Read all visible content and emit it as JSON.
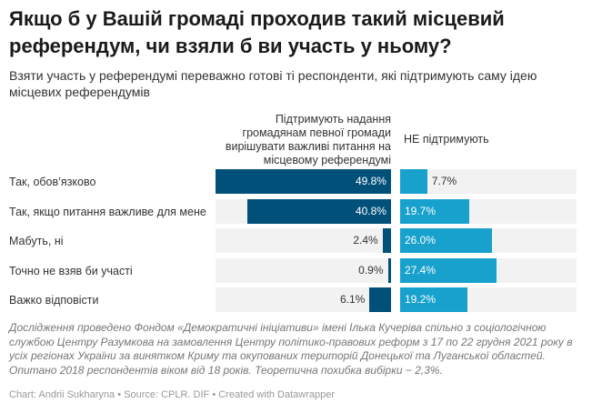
{
  "title": "Якщо б у Вашій громаді проходив такий місцевий референдум, чи взяли б ви участь у ньому?",
  "subtitle": "Взяти участь у референдумі переважно готові ті респонденти, які підтримують саму ідею місцевих референдумів",
  "chart_data": {
    "type": "bar",
    "orientation": "horizontal",
    "xlim": [
      0,
      50
    ],
    "categories": [
      "Так, обов’язково",
      "Так, якщо питання важливе для мене",
      "Мабуть, ні",
      "Точно не взяв би участі",
      "Важко відповісти"
    ],
    "series": [
      {
        "name": "Підтримують надання громадянам певної громади вирішувати важливі питання на місцевому референдумі",
        "values": [
          49.8,
          40.8,
          2.4,
          0.9,
          6.1
        ],
        "color": "#00507a",
        "labels": [
          "49.8%",
          "40.8%",
          "2.4%",
          "0.9%",
          "6.1%"
        ]
      },
      {
        "name": "НЕ підтримують",
        "values": [
          7.7,
          19.7,
          26.0,
          27.4,
          19.2
        ],
        "color": "#18a1cd",
        "labels": [
          "7.7%",
          "19.7%",
          "26.0%",
          "27.4%",
          "19.2%"
        ]
      }
    ]
  },
  "notes": "Дослідження проведено Фондом «Демократичні ініціативи» імені Ілька Кучеріва спільно з соціологічною службою Центру Разумкова на замовлення Центру політико-правових реформ з 17 по 22 грудня 2021 року в усіх регіонах України за винятком Криму та окупованих територій Донецької та Луганської областей. Опитано 2018 респондентів віком від 18 років. Теоретична похибка вибірки − 2,3%.",
  "footer": "Chart: Andrii Sukharyna • Source: CPLR. DIF • Created with Datawrapper"
}
